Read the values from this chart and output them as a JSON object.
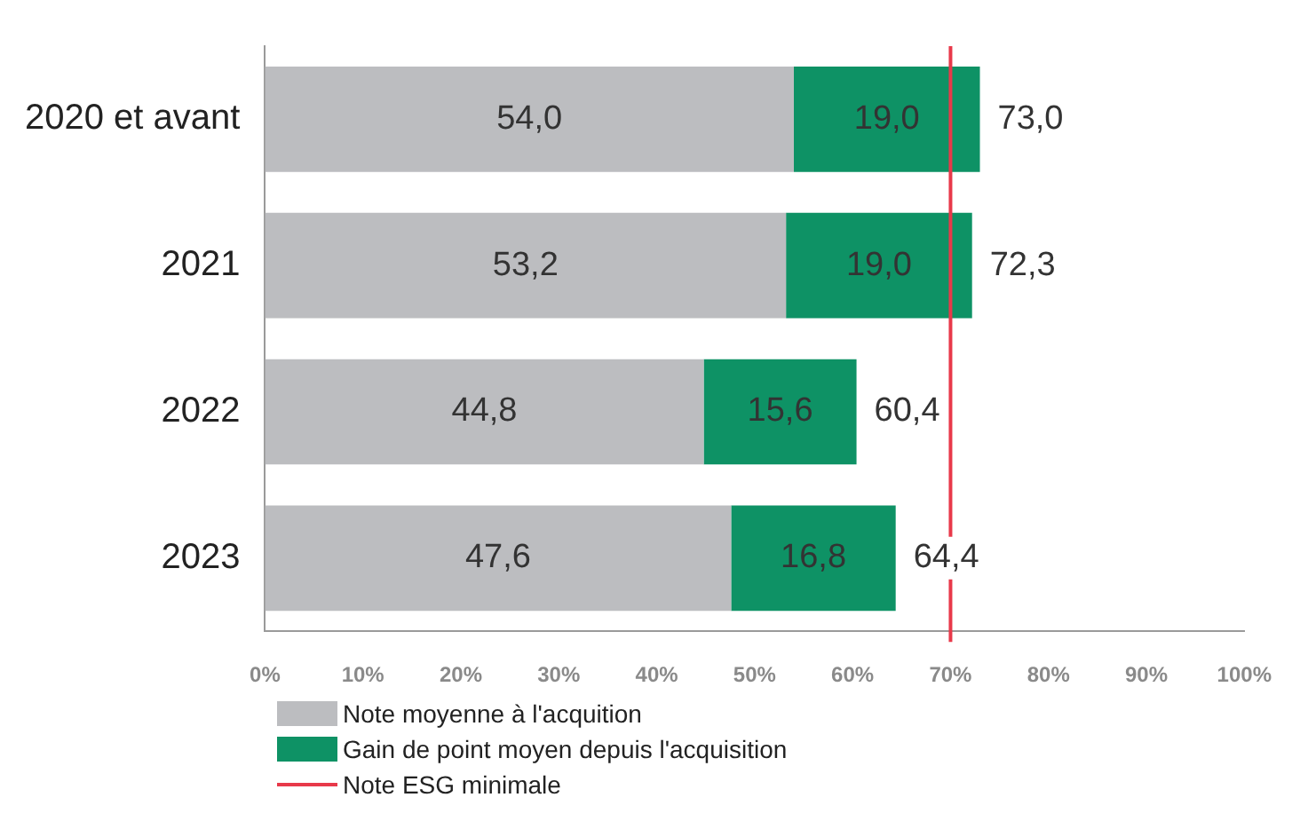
{
  "chart_data": {
    "type": "bar",
    "orientation": "horizontal",
    "stacked": true,
    "categories": [
      "2020 et avant",
      "2021",
      "2022",
      "2023"
    ],
    "series": [
      {
        "name": "Note moyenne à l'acquition",
        "color": "#bcbdc0",
        "values": [
          54.0,
          53.2,
          44.8,
          47.6
        ],
        "value_labels": [
          "54,0",
          "53,2",
          "44,8",
          "47,6"
        ]
      },
      {
        "name": "Gain de point moyen depuis l'acquisition",
        "color": "#0e9265",
        "values": [
          19.0,
          19.0,
          15.6,
          16.8
        ],
        "value_labels": [
          "19,0",
          "19,0",
          "15,6",
          "16,8"
        ]
      }
    ],
    "totals": [
      "73,0",
      "72,3",
      "60,4",
      "64,4"
    ],
    "xlim": [
      0,
      100
    ],
    "xticks": [
      {
        "value": 0,
        "label": "0%"
      },
      {
        "value": 10,
        "label": "10%"
      },
      {
        "value": 20,
        "label": "20%"
      },
      {
        "value": 30,
        "label": "30%"
      },
      {
        "value": 40,
        "label": "40%"
      },
      {
        "value": 50,
        "label": "50%"
      },
      {
        "value": 60,
        "label": "60%"
      },
      {
        "value": 70,
        "label": "70%"
      },
      {
        "value": 80,
        "label": "80%"
      },
      {
        "value": 90,
        "label": "90%"
      },
      {
        "value": 100,
        "label": "100%"
      }
    ],
    "ref_lines": [
      {
        "axis": "x",
        "value": 70,
        "label": "Note ESG minimale",
        "color": "#e8394a"
      }
    ],
    "grid": false,
    "legend": "bottom left"
  }
}
